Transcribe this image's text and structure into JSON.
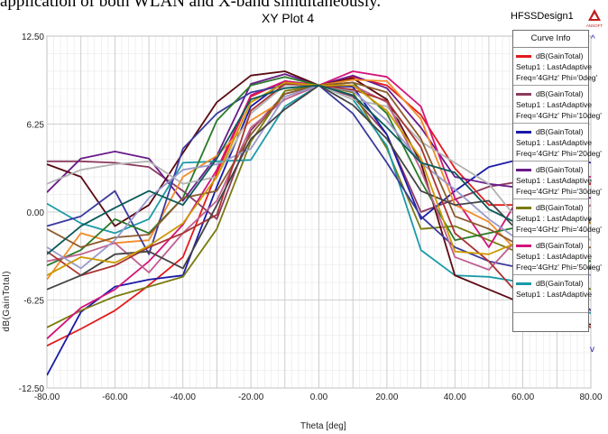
{
  "caption": "application of both WLAN and X-band simultaneously.",
  "header": {
    "title": "XY Plot 4",
    "design": "HFSSDesign1",
    "logo_text": "ANSOFT"
  },
  "legend": {
    "header": "Curve Info",
    "entries": [
      {
        "name": "dB(GainTotal)",
        "setup": "Setup1 : LastAdaptive",
        "params": "Freq='4GHz' Phi='0deg'",
        "color": "#e41a1c"
      },
      {
        "name": "dB(GainTotal)",
        "setup": "Setup1 : LastAdaptive",
        "params": "Freq='4GHz' Phi='10deg'",
        "color": "#8c3a5e"
      },
      {
        "name": "dB(GainTotal)",
        "setup": "Setup1 : LastAdaptive",
        "params": "Freq='4GHz' Phi='20deg'",
        "color": "#1a1aa8"
      },
      {
        "name": "dB(GainTotal)",
        "setup": "Setup1 : LastAdaptive",
        "params": "Freq='4GHz' Phi='30deg'",
        "color": "#6a1b8a"
      },
      {
        "name": "dB(GainTotal)",
        "setup": "Setup1 : LastAdaptive",
        "params": "Freq='4GHz' Phi='40deg'",
        "color": "#7a7a10"
      },
      {
        "name": "dB(GainTotal)",
        "setup": "Setup1 : LastAdaptive",
        "params": "Freq='4GHz' Phi='50deg'",
        "color": "#d4147a"
      },
      {
        "name": "dB(GainTotal)",
        "setup": "Setup1 : LastAdaptive",
        "params": "",
        "color": "#1a9aa8"
      }
    ]
  },
  "chart_data": {
    "type": "line",
    "xlabel": "Theta [deg]",
    "ylabel": "dB(GainTotal)",
    "xlim": [
      -80,
      80
    ],
    "ylim": [
      -12.5,
      12.5
    ],
    "x": [
      -80,
      -70,
      -60,
      -50,
      -40,
      -30,
      -20,
      -10,
      0,
      10,
      20,
      30,
      40,
      50,
      60,
      70,
      80
    ],
    "x_tick_labels": [
      "-80.00",
      "-60.00",
      "-40.00",
      "-20.00",
      "0.00",
      "20.00",
      "40.00",
      "60.00",
      "80.00"
    ],
    "y_tick_labels": [
      "12.50",
      "6.25",
      "0.00",
      "-6.25",
      "-12.50"
    ],
    "grid": true,
    "legend_position": "right",
    "series": [
      {
        "color": "#e41a1c",
        "values": [
          -9.5,
          -8.3,
          -7.0,
          -5.2,
          -3.2,
          2.8,
          8.2,
          9.3,
          9.0,
          9.6,
          9.0,
          6.9,
          3.1,
          0.5,
          0.5,
          1.5,
          2.0
        ]
      },
      {
        "color": "#8c3a5e",
        "values": [
          3.6,
          3.6,
          3.5,
          3.2,
          1.5,
          -0.5,
          5.8,
          8.4,
          9.0,
          8.2,
          5.5,
          0.0,
          0.9,
          1.8,
          2.2,
          0.9,
          -0.8
        ]
      },
      {
        "color": "#1a1aa8",
        "values": [
          -11.6,
          -7.1,
          -5.3,
          -4.8,
          -4.5,
          1.8,
          7.5,
          9.3,
          9.0,
          8.9,
          5.5,
          -0.5,
          1.5,
          3.2,
          3.8,
          4.0,
          3.5
        ]
      },
      {
        "color": "#6a1b8a",
        "values": [
          1.4,
          3.8,
          4.3,
          3.8,
          0.8,
          4.0,
          9.1,
          9.8,
          9.0,
          9.7,
          8.8,
          6.0,
          2.5,
          2.0,
          1.7,
          1.2,
          1.0
        ]
      },
      {
        "color": "#7a7a10",
        "values": [
          -8.2,
          -7.0,
          -6.0,
          -5.3,
          -4.6,
          -1.2,
          5.0,
          8.6,
          9.0,
          8.5,
          4.5,
          -1.2,
          -1.0,
          -2.0,
          -3.0,
          -4.0,
          -5.5
        ]
      },
      {
        "color": "#d4147a",
        "values": [
          -9.0,
          -6.8,
          -5.5,
          -3.5,
          -0.9,
          3.0,
          8.3,
          9.3,
          9.0,
          10.0,
          9.6,
          7.5,
          1.0,
          -2.5,
          1.5,
          2.8,
          2.5
        ]
      },
      {
        "color": "#1a9aa8",
        "values": [
          0.6,
          -0.8,
          -1.5,
          -0.5,
          3.5,
          3.6,
          3.7,
          7.5,
          9.0,
          8.0,
          4.7,
          -2.7,
          -4.5,
          -4.6,
          -5.0,
          -6.0,
          -7.2
        ]
      },
      {
        "color": "#5a0a12",
        "values": [
          3.4,
          2.5,
          -1.0,
          0.5,
          4.2,
          7.8,
          9.7,
          10.0,
          9.0,
          9.5,
          8.0,
          3.5,
          -4.5,
          -5.5,
          -6.5,
          -7.5,
          -8.0
        ]
      },
      {
        "color": "#f28c28",
        "values": [
          -4.8,
          -1.5,
          -2.2,
          -2.0,
          2.5,
          4.0,
          6.5,
          8.0,
          9.0,
          9.4,
          9.3,
          6.6,
          0.5,
          -0.7,
          -3.2,
          -3.5,
          -4.0
        ]
      },
      {
        "color": "#3b3b9e",
        "values": [
          -1.0,
          -0.3,
          1.5,
          -3.0,
          4.5,
          7.0,
          8.5,
          9.0,
          9.0,
          7.0,
          3.5,
          -0.3,
          -2.5,
          -3.5,
          -4.0,
          -5.0,
          -7.0
        ]
      },
      {
        "color": "#2a7a2a",
        "values": [
          -3.8,
          -2.7,
          -0.5,
          -1.5,
          1.0,
          6.5,
          9.0,
          9.6,
          9.0,
          9.2,
          7.0,
          2.2,
          -2.0,
          -1.5,
          -1.0,
          -3.0,
          -3.5
        ]
      },
      {
        "color": "#b3b3b3",
        "values": [
          2.0,
          3.0,
          3.4,
          3.6,
          2.0,
          2.5,
          7.0,
          9.0,
          9.0,
          8.0,
          7.5,
          5.0,
          3.5,
          2.0,
          -1.0,
          -0.5,
          -2.0
        ]
      },
      {
        "color": "#c06090",
        "values": [
          -3.5,
          -3.0,
          -2.2,
          -4.3,
          -1.5,
          0.8,
          6.0,
          8.0,
          9.0,
          9.0,
          7.8,
          3.0,
          -3.2,
          -4.1,
          -1.5,
          -1.0,
          0.5
        ]
      },
      {
        "color": "#8b5a2b",
        "values": [
          -1.2,
          -2.5,
          -1.8,
          -1.6,
          1.0,
          1.5,
          5.5,
          8.4,
          9.0,
          9.2,
          8.5,
          5.2,
          -0.3,
          -1.2,
          -2.5,
          -3.0,
          -2.5
        ]
      },
      {
        "color": "#9999cc",
        "values": [
          -2.5,
          -4.0,
          -2.0,
          1.0,
          3.0,
          3.4,
          4.5,
          8.2,
          9.0,
          8.6,
          6.5,
          3.5,
          1.6,
          -0.5,
          -2.2,
          -3.4,
          -4.5
        ]
      },
      {
        "color": "#aa3333",
        "values": [
          -2.8,
          -4.5,
          -3.8,
          -2.5,
          -1.5,
          -0.2,
          7.2,
          9.1,
          9.0,
          8.7,
          7.9,
          4.6,
          -1.5,
          -3.5,
          -6.2,
          -7.2,
          -8.2
        ]
      },
      {
        "color": "#444444",
        "values": [
          -5.5,
          -4.5,
          -3.0,
          -2.8,
          -4.0,
          0.5,
          5.2,
          7.3,
          9.0,
          7.6,
          5.2,
          1.5,
          0.5,
          0.8,
          -1.7,
          -2.0,
          -0.5
        ]
      },
      {
        "color": "#cc9900",
        "values": [
          -4.5,
          -3.2,
          -3.6,
          -2.4,
          -0.8,
          2.5,
          7.8,
          9.2,
          9.0,
          9.0,
          7.2,
          3.8,
          -2.8,
          -3.0,
          -2.0,
          -1.0,
          -0.8
        ]
      },
      {
        "color": "#0a5a5a",
        "values": [
          -3.0,
          -1.0,
          0.3,
          1.5,
          0.5,
          3.8,
          8.0,
          8.8,
          9.0,
          8.3,
          6.0,
          3.5,
          2.8,
          0.2,
          -1.0,
          -2.8,
          -4.0
        ]
      }
    ]
  }
}
